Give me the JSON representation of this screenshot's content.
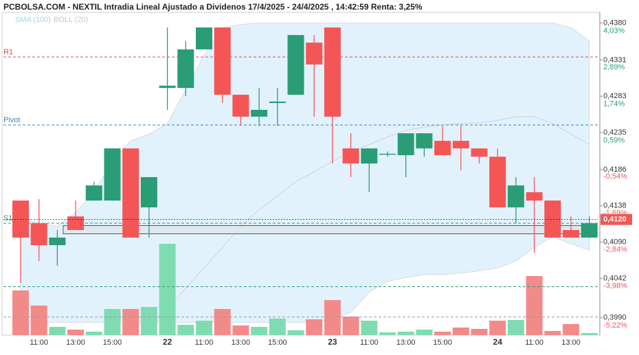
{
  "chart_data": {
    "type": "candlestick",
    "title": "PCBOLSA.COM - NEXTIL Intradia Lineal Ajustado a Dividenos 17/4/2025 - 24/4/2025 , 14:42:59 Renta: 3,25%",
    "categories": [
      null,
      "11:00",
      null,
      "13:00",
      null,
      "15:00",
      null,
      null,
      "22",
      null,
      "11:00",
      null,
      "13:00",
      null,
      "15:00",
      null,
      null,
      "23",
      null,
      "11:00",
      null,
      "13:00",
      null,
      "15:00",
      null,
      null,
      "24",
      null,
      "11:00",
      null,
      "13:00",
      null
    ],
    "open": [
      0.4145,
      0.4115,
      0.4086,
      0.4124,
      0.4145,
      0.4145,
      0.4214,
      0.4136,
      0.4294,
      0.4294,
      0.4345,
      0.4374,
      0.4285,
      0.4256,
      0.4274,
      0.4285,
      0.4354,
      0.4374,
      0.4214,
      0.4194,
      0.4206,
      0.4205,
      0.4214,
      0.4224,
      0.4224,
      0.4214,
      0.4203,
      0.4136,
      0.4156,
      0.4145,
      0.4106,
      0.4096
    ],
    "high": [
      0.4145,
      0.4147,
      0.4106,
      0.4145,
      0.417,
      0.4214,
      0.4214,
      0.4176,
      0.4374,
      0.4356,
      0.4374,
      0.4374,
      0.4285,
      0.4294,
      0.4294,
      0.4364,
      0.4364,
      0.4374,
      0.4234,
      0.4214,
      0.421,
      0.4234,
      0.4234,
      0.4244,
      0.4244,
      0.4214,
      0.4214,
      0.4176,
      0.4176,
      0.4145,
      0.4124,
      0.4124
    ],
    "low": [
      0.4036,
      0.4065,
      0.4059,
      0.4106,
      0.4145,
      0.4145,
      0.4096,
      0.4096,
      0.4265,
      0.4283,
      0.4345,
      0.4274,
      0.4244,
      0.4244,
      0.4244,
      0.4285,
      0.4256,
      0.4194,
      0.4176,
      0.4156,
      0.4203,
      0.4176,
      0.4203,
      0.4205,
      0.4185,
      0.4194,
      0.4136,
      0.4115,
      0.4076,
      0.4096,
      0.4096,
      0.4096
    ],
    "close": [
      0.4096,
      0.4086,
      0.4096,
      0.4106,
      0.4165,
      0.4214,
      0.4096,
      0.4176,
      0.4297,
      0.4345,
      0.4374,
      0.4285,
      0.4256,
      0.4265,
      0.4276,
      0.4364,
      0.4325,
      0.4256,
      0.4194,
      0.4214,
      0.4207,
      0.4234,
      0.4234,
      0.4205,
      0.4214,
      0.4203,
      0.4136,
      0.4165,
      0.4145,
      0.4096,
      0.4096,
      0.4115
    ],
    "volume": [
      65,
      43,
      12,
      8,
      5,
      38,
      38,
      41,
      133,
      15,
      21,
      38,
      14,
      12,
      24,
      7,
      23,
      51,
      27,
      21,
      4,
      5,
      8,
      5,
      11,
      9,
      21,
      22,
      86,
      6,
      16,
      3
    ],
    "up_color": "#2a9d76",
    "down_color": "#f45656",
    "volume_up_color": "#7fdcb2",
    "volume_down_color": "#f38a8a",
    "series": [
      {
        "name": "SMA (100)",
        "color": "#9dd3f2",
        "line_color": "#d0d0d0",
        "values": [
          null,
          null,
          null,
          null,
          null,
          null,
          null,
          null,
          0.4002,
          0.4029,
          0.4056,
          0.4083,
          0.4111,
          0.4133,
          0.4151,
          0.417,
          0.4183,
          0.4197,
          0.421,
          0.4219,
          0.4229,
          0.4238,
          0.4242,
          0.4245,
          0.4247,
          0.4248,
          0.4251,
          0.4256,
          0.4256,
          0.4247,
          0.4233,
          0.4219
        ]
      },
      {
        "name": "BOLL (20)",
        "color": "#c8c8c8",
        "fill": "#e2f2fc",
        "upper": [
          0.412,
          0.4115,
          0.4111,
          0.4129,
          0.4156,
          0.4197,
          0.4224,
          0.4233,
          0.4247,
          0.4292,
          0.4337,
          0.4374,
          0.4378,
          0.438,
          0.438,
          0.438,
          0.438,
          0.438,
          0.438,
          0.438,
          0.438,
          0.438,
          0.438,
          0.438,
          0.438,
          0.438,
          0.438,
          0.438,
          0.438,
          0.438,
          0.4374,
          0.4356
        ],
        "lower": [
          0.3984,
          0.3984,
          0.3984,
          0.3984,
          0.3984,
          0.3984,
          0.3984,
          0.3984,
          0.3984,
          0.3984,
          0.3984,
          0.3984,
          0.3984,
          0.3984,
          0.3984,
          0.3984,
          0.3984,
          0.3988,
          0.3997,
          0.4024,
          0.4038,
          0.4043,
          0.4047,
          0.4047,
          0.4049,
          0.4052,
          0.4056,
          0.4065,
          0.4083,
          0.4097,
          0.4088,
          0.4079
        ]
      }
    ],
    "levels": [
      {
        "name": "R1",
        "value": 0.4335,
        "color": "#e04848"
      },
      {
        "name": "Pivot",
        "value": 0.4245,
        "color": "#3a7fc8"
      },
      {
        "name": "S1",
        "value": 0.4115,
        "color": "#2a9d76"
      },
      {
        "name": null,
        "value": 0.4031,
        "color": "#2a9d76"
      },
      {
        "name": null,
        "value": 0.3991,
        "color": "#999999"
      }
    ],
    "zone": [
      0.4101,
      0.4112
    ],
    "last_price": {
      "value": 0.412,
      "label": "0,4120"
    },
    "ylim": [
      0.3967,
      0.4394
    ],
    "yticks": [
      {
        "value": 0.438,
        "label": "0,4380"
      },
      {
        "value": 0.4331,
        "label": "0,4331"
      },
      {
        "value": 0.4283,
        "label": "0,4283"
      },
      {
        "value": 0.4235,
        "label": "0,4235"
      },
      {
        "value": 0.4186,
        "label": "0,4186"
      },
      {
        "value": 0.4138,
        "label": "0,4138"
      },
      {
        "value": 0.409,
        "label": "0,4090"
      },
      {
        "value": 0.4042,
        "label": "0,4042"
      },
      {
        "value": 0.399,
        "label": "0,3990"
      }
    ],
    "y2lim": [
      -5.78,
      4.36
    ],
    "y2ticks": [
      {
        "value": 4.03,
        "label": "4,03%"
      },
      {
        "value": 2.89,
        "label": "2,89%"
      },
      {
        "value": 1.74,
        "label": "1,74%"
      },
      {
        "value": 0.59,
        "label": "0,59%"
      },
      {
        "value": -0.54,
        "label": "-0,54%"
      },
      {
        "value": -1.69,
        "label": "-1,69%"
      },
      {
        "value": -2.84,
        "label": "-2,84%"
      },
      {
        "value": -3.98,
        "label": "-3,98%"
      },
      {
        "value": -5.22,
        "label": "-5,22%"
      }
    ]
  }
}
